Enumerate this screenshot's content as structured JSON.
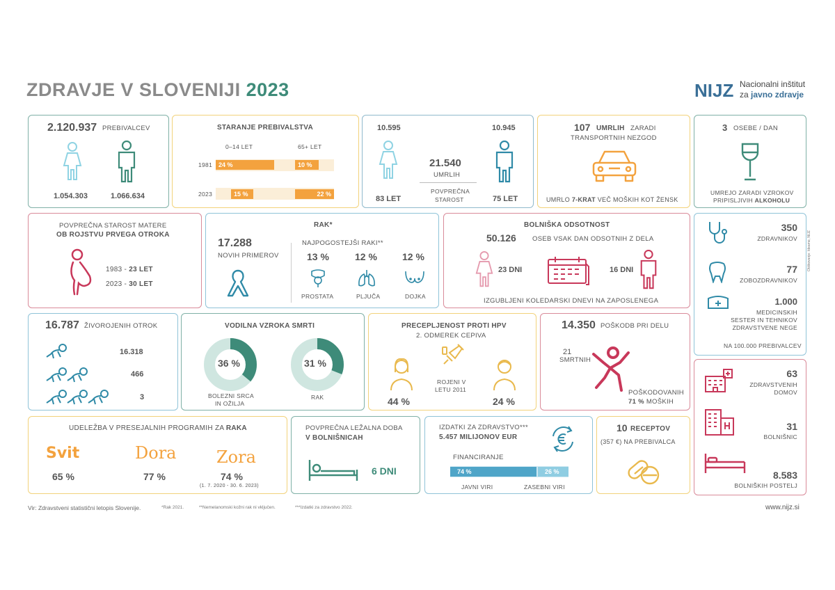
{
  "header": {
    "title_main": "ZDRAVJE V SLOVENIJI",
    "title_year": "2023",
    "logo_text": "NIJZ",
    "org_line1": "Nacionalni inštitut",
    "org_line2_a": "za ",
    "org_line2_b": "javno zdravje"
  },
  "population": {
    "total": "2.120.937",
    "label": "PREBIVALCEV",
    "women": "1.054.303",
    "men": "1.066.634"
  },
  "aging": {
    "title": "STARANJE PREBIVALSTVA",
    "col_young": "0–14 LET",
    "col_old": "65+ LET",
    "year1": "1981",
    "y1_young": "24 %",
    "y1_old": "10 %",
    "year2": "2023",
    "y2_young": "15 %",
    "y2_old": "22 %"
  },
  "deaths": {
    "women": "10.595",
    "men": "10.945",
    "total": "21.540",
    "label": "UMRLIH",
    "avg_label_1": "POVPREČNA",
    "avg_label_2": "STAROST",
    "women_age": "83 LET",
    "men_age": "75 LET"
  },
  "transport": {
    "value": "107",
    "label1": "UMRLIH",
    "label1b": "ZARADI",
    "label2": "TRANSPORTNIH NEZGOD",
    "foot_a": "UMRLO ",
    "foot_b": "7-KRAT",
    "foot_c": " VEČ MOŠKIH KOT ŽENSK"
  },
  "alcohol": {
    "value": "3",
    "label": "OSEBE / DAN",
    "foot1": "UMREJO ZARADI VZROKOV",
    "foot2_a": "PRIPISLJIVIH ",
    "foot2_b": "ALKOHOLU"
  },
  "mother": {
    "line1": "POVPREČNA STAROST MATERE",
    "line2": "OB ROJSTVU PRVEGA OTROKA",
    "r1_year": "1983 - ",
    "r1_val": "23 LET",
    "r2_year": "2023 - ",
    "r2_val": "30 LET"
  },
  "cancer": {
    "title": "RAK*",
    "value": "17.288",
    "value_label": "NOVIH PRIMEROV",
    "common_label": "NAJPOGOSTEJŠI RAKI**",
    "items": [
      {
        "pct": "13 %",
        "label": "PROSTATA"
      },
      {
        "pct": "12 %",
        "label": "PLJUČA"
      },
      {
        "pct": "12 %",
        "label": "DOJKA"
      }
    ]
  },
  "sick_leave": {
    "title": "BOLNIŠKA ODSOTNOST",
    "value": "50.126",
    "value_label": "OSEB VSAK DAN ODSOTNIH Z DELA",
    "women_days": "23 DNI",
    "men_days": "16 DNI",
    "foot": "IZGUBLJENI KOLEDARSKI DNEVI NA ZAPOSLENEGA"
  },
  "staff": {
    "doctors": "350",
    "doctors_label": "ZDRAVNIKOV",
    "dentists": "77",
    "dentists_label": "ZOBOZDRAVNIKOV",
    "nurses": "1.000",
    "nurses_l1": "MEDICINSKIH",
    "nurses_l2": "SESTER IN TEHNIKOV",
    "nurses_l3": "ZDRAVSTVENE NEGE",
    "foot": "NA 100.000 PREBIVALCEV"
  },
  "births": {
    "value": "16.787",
    "label": "ŽIVOROJENIH OTROK",
    "single": "16.318",
    "twins": "466",
    "triplets": "3"
  },
  "causes": {
    "title": "VODILNA VZROKA SMRTI",
    "heart_pct": "36 %",
    "heart_l1": "BOLEZNI SRCA",
    "heart_l2": "IN OŽILJA",
    "cancer_pct": "31 %",
    "cancer_label": "RAK"
  },
  "hpv": {
    "title": "PRECEPLJENOST PROTI HPV",
    "subtitle": "2. ODMEREK CEPIVA",
    "born_l1": "ROJENI V",
    "born_l2": "LETU 2011",
    "girls": "44 %",
    "boys": "24 %"
  },
  "injuries": {
    "value": "14.350",
    "label": "POŠKODB PRI DELU",
    "fatal": "21",
    "fatal_label": "SMRTNIH",
    "injured_label": "POŠKODOVANIH",
    "injured_men_pct": "71 %",
    "injured_men_label": "MOŠKIH"
  },
  "facilities": {
    "centers": "63",
    "centers_l1": "ZDRAVSTVENIH",
    "centers_l2": "DOMOV",
    "hospitals": "31",
    "hospitals_label": "BOLNIŠNIC",
    "beds": "8.583",
    "beds_label": "BOLNIŠKIH POSTELJ"
  },
  "screening": {
    "title_a": "UDELEŽBA V PRESEJALNIH PROGRAMIH ZA ",
    "title_b": "RAKA",
    "svit": "Svit",
    "svit_pct": "65 %",
    "dora": "Dora",
    "dora_pct": "77 %",
    "zora": "Zora",
    "zora_pct": "74 %",
    "zora_note": "(1. 7. 2020 - 30. 6. 2023)"
  },
  "hospital_stay": {
    "line1": "POVPREČNA LEŽALNA DOBA",
    "line2": "V BOLNIŠNICAH",
    "value": "6 DNI"
  },
  "spending": {
    "title": "IZDATKI ZA ZDRAVSTVO***",
    "value": "5.457 MILIJONOV EUR",
    "fin_label": "FINANCIRANJE",
    "public_pct": "74 %",
    "private_pct": "26 %",
    "public_label": "JAVNI VIRI",
    "private_label": "ZASEBNI VIRI"
  },
  "prescriptions": {
    "value": "10",
    "label": "RECEPTOV",
    "sub": "(357 €) NA PREBIVALCA"
  },
  "footer": {
    "source": "Vir: Zdravstveni statistični letopis Slovenije.",
    "note1": "*Rak 2021.",
    "note2": "**Nemelanomski kožni rak ni vključen.",
    "note3": "***Izdatki za zdravstvo 2022.",
    "site": "www.nijz.si",
    "side_credit": "Oblikovanje: Ideamo, NIJZ"
  },
  "colors": {
    "teal": "#3e8b79",
    "orange": "#f3a23e",
    "red": "#c8385a",
    "sky": "#59a9c6",
    "yellow": "#e9b94d",
    "pink": "#e59aae",
    "blue_bar": "#4fa5c8"
  }
}
